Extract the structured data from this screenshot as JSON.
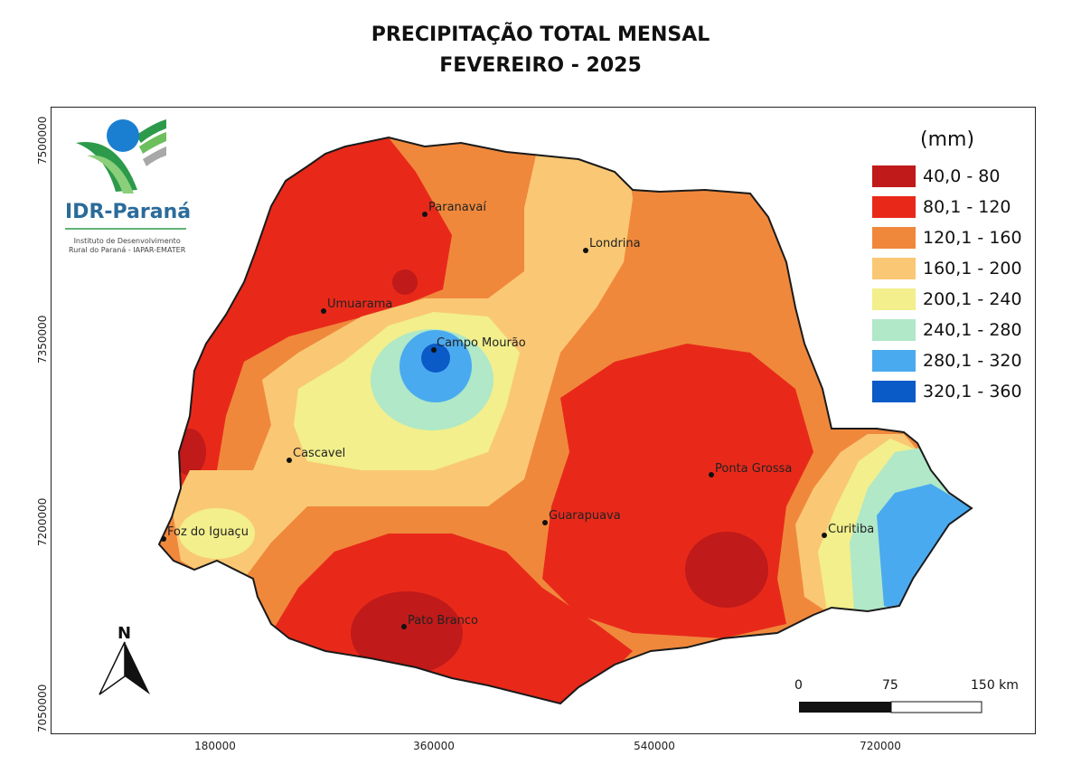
{
  "title_line1": "PRECIPITAÇÃO TOTAL MENSAL",
  "title_line2": "FEVEREIRO - 2025",
  "logo": {
    "name": "IDR-Paraná",
    "subtitle_line1": "Instituto de Desenvolvimento",
    "subtitle_line2": "Rural do Paraná - IAPAR-EMATER"
  },
  "legend": {
    "unit": "(mm)",
    "classes": [
      {
        "label": "40,0 - 80",
        "color": "#c01a1a"
      },
      {
        "label": "80,1 - 120",
        "color": "#e8291a"
      },
      {
        "label": "120,1 - 160",
        "color": "#f0883c"
      },
      {
        "label": "160,1 - 200",
        "color": "#fac874"
      },
      {
        "label": "200,1 - 240",
        "color": "#f2ef8c"
      },
      {
        "label": "240,1 - 280",
        "color": "#b0e8c8"
      },
      {
        "label": "280,1 - 320",
        "color": "#4aaaf0"
      },
      {
        "label": "320,1 - 360",
        "color": "#0a5ac8"
      }
    ]
  },
  "cities": [
    {
      "name": "Paranavaí"
    },
    {
      "name": "Londrina"
    },
    {
      "name": "Umuarama"
    },
    {
      "name": "Campo Mourão"
    },
    {
      "name": "Cascavel"
    },
    {
      "name": "Ponta Grossa"
    },
    {
      "name": "Guarapuava"
    },
    {
      "name": "Foz do Iguaçu"
    },
    {
      "name": "Curitiba"
    },
    {
      "name": "Pato Branco"
    }
  ],
  "axes": {
    "x_ticks": [
      "180000",
      "360000",
      "540000",
      "720000"
    ],
    "y_ticks": [
      "7500000",
      "7350000",
      "7200000",
      "7050000"
    ]
  },
  "north_arrow": "N",
  "scale_bar": {
    "labels": [
      "0",
      "75",
      "150 km"
    ]
  }
}
